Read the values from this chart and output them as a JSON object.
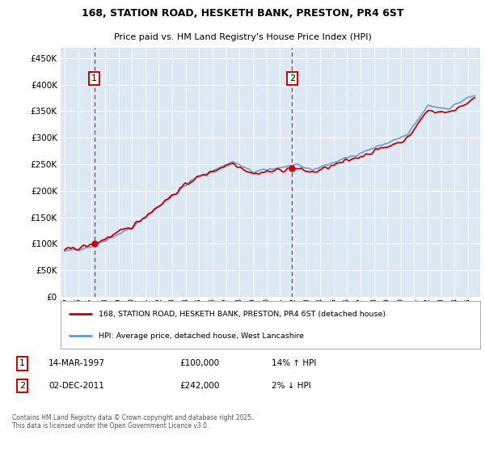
{
  "title_line1": "168, STATION ROAD, HESKETH BANK, PRESTON, PR4 6ST",
  "title_line2": "Price paid vs. HM Land Registry's House Price Index (HPI)",
  "legend_line1": "168, STATION ROAD, HESKETH BANK, PRESTON, PR4 6ST (detached house)",
  "legend_line2": "HPI: Average price, detached house, West Lancashire",
  "annotation1_label": "1",
  "annotation1_date": "14-MAR-1997",
  "annotation1_price": "£100,000",
  "annotation1_hpi": "14% ↑ HPI",
  "annotation2_label": "2",
  "annotation2_date": "02-DEC-2011",
  "annotation2_price": "£242,000",
  "annotation2_hpi": "2% ↓ HPI",
  "footer": "Contains HM Land Registry data © Crown copyright and database right 2025.\nThis data is licensed under the Open Government Licence v3.0.",
  "property_color": "#cc0000",
  "hpi_color": "#6699cc",
  "background_color": "#dce9f5",
  "grid_color": "#ffffff",
  "outer_grid_color": "#cccccc",
  "annotation_marker1_year": 1997.21,
  "annotation_marker2_year": 2011.92,
  "ylim": [
    0,
    470000
  ],
  "yticks": [
    0,
    50000,
    100000,
    150000,
    200000,
    250000,
    300000,
    350000,
    400000,
    450000
  ],
  "xmin": 1994.7,
  "xmax": 2025.9,
  "sale1_year": 1997.21,
  "sale1_price": 100000,
  "sale2_year": 2011.92,
  "sale2_price": 242000
}
